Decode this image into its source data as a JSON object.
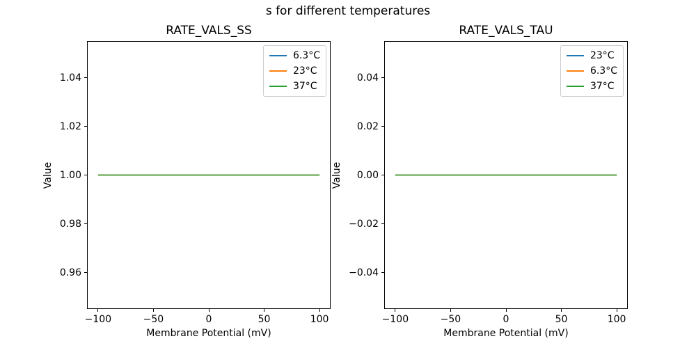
{
  "figure": {
    "suptitle": "s for different temperatures",
    "background": "#ffffff",
    "frame_color": "#000000",
    "legend_border_color": "#cccccc"
  },
  "chart_data": [
    {
      "type": "line",
      "title": "RATE_VALS_SS",
      "xlabel": "Membrane Potential (mV)",
      "ylabel": "Value",
      "xlim": [
        -110,
        110
      ],
      "ylim": [
        0.945,
        1.055
      ],
      "xticks": [
        -100,
        -50,
        0,
        50,
        100
      ],
      "xtick_labels": [
        "−100",
        "−50",
        "0",
        "50",
        "100"
      ],
      "yticks": [
        0.96,
        0.98,
        1.0,
        1.02,
        1.04
      ],
      "ytick_labels": [
        "0.96",
        "0.98",
        "1.00",
        "1.02",
        "1.04"
      ],
      "grid": false,
      "legend_position": "upper right",
      "series": [
        {
          "name": "6.3°C",
          "color": "#1f77b4",
          "x": [
            -100,
            100
          ],
          "y": [
            1.0,
            1.0
          ]
        },
        {
          "name": "23°C",
          "color": "#ff7f0e",
          "x": [
            -100,
            100
          ],
          "y": [
            1.0,
            1.0
          ]
        },
        {
          "name": "37°C",
          "color": "#2ca02c",
          "x": [
            -100,
            100
          ],
          "y": [
            1.0,
            1.0
          ]
        }
      ]
    },
    {
      "type": "line",
      "title": "RATE_VALS_TAU",
      "xlabel": "Membrane Potential (mV)",
      "ylabel": "Value",
      "xlim": [
        -110,
        110
      ],
      "ylim": [
        -0.055,
        0.055
      ],
      "xticks": [
        -100,
        -50,
        0,
        50,
        100
      ],
      "xtick_labels": [
        "−100",
        "−50",
        "0",
        "50",
        "100"
      ],
      "yticks": [
        -0.04,
        -0.02,
        0.0,
        0.02,
        0.04
      ],
      "ytick_labels": [
        "−0.04",
        "−0.02",
        "0.00",
        "0.02",
        "0.04"
      ],
      "grid": false,
      "legend_position": "upper right",
      "series": [
        {
          "name": "23°C",
          "color": "#1f77b4",
          "x": [
            -100,
            100
          ],
          "y": [
            0.0,
            0.0
          ]
        },
        {
          "name": "6.3°C",
          "color": "#ff7f0e",
          "x": [
            -100,
            100
          ],
          "y": [
            0.0,
            0.0
          ]
        },
        {
          "name": "37°C",
          "color": "#2ca02c",
          "x": [
            -100,
            100
          ],
          "y": [
            0.0,
            0.0
          ]
        }
      ]
    }
  ]
}
